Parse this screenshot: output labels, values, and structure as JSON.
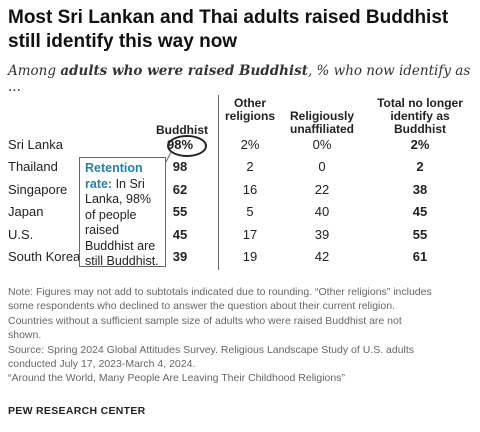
{
  "title": "Most Sri Lankan and Thai adults raised Buddhist still identify this way now",
  "subtitle_prefix": "Among ",
  "subtitle_emphasis": "adults who were raised Buddhist",
  "subtitle_suffix": ", % who now identify as ...",
  "chart_data": {
    "type": "table",
    "columns": [
      "Buddhist",
      "Other religions",
      "Religiously unaffiliated",
      "Total no longer identify as Buddhist"
    ],
    "rows": [
      {
        "country": "Sri Lanka",
        "values": [
          "98%",
          "2%",
          "0%",
          "2%"
        ]
      },
      {
        "country": "Thailand",
        "values": [
          "98",
          "2",
          "0",
          "2"
        ]
      },
      {
        "country": "Singapore",
        "values": [
          "62",
          "16",
          "22",
          "38"
        ]
      },
      {
        "country": "Japan",
        "values": [
          "55",
          "5",
          "40",
          "45"
        ]
      },
      {
        "country": "U.S.",
        "values": [
          "45",
          "17",
          "39",
          "55"
        ]
      },
      {
        "country": "South Korea",
        "values": [
          "39",
          "19",
          "42",
          "61"
        ]
      }
    ]
  },
  "headers": {
    "buddhist": "Buddhist",
    "other_l1": "Other",
    "other_l2": "religions",
    "unaff_l1": "Religiously",
    "unaff_l2": "unaffiliated",
    "total_l1": "Total no longer",
    "total_l2": "identify as",
    "total_l3": "Buddhist"
  },
  "callout": {
    "lead_l1": "Retention",
    "lead_l2": "rate:",
    "text_l2": " In Sri",
    "l3": "Lanka, 98%",
    "l4": "of people",
    "l5": "raised",
    "l6": "Buddhist are",
    "l7": "still Buddhist."
  },
  "notes": {
    "n1": "Note: Figures may not add to subtotals indicated due to rounding. “Other religions” includes",
    "n2": "some respondents who declined to answer the question about their current religion.",
    "n3": "Countries without a sufficient sample size of adults who were raised Buddhist are not",
    "n4": "shown.",
    "n5": "Source: Spring 2024 Global Attitudes Survey. Religious Landscape Study of U.S. adults",
    "n6": "conducted July 17, 2023-March 4, 2024.",
    "n7": "“Around the World, Many People Are Leaving Their Childhood Religions”"
  },
  "brand": "PEW RESEARCH CENTER",
  "colors": {
    "accent": "#2a7fa8",
    "text": "#222222",
    "note": "#666666"
  }
}
